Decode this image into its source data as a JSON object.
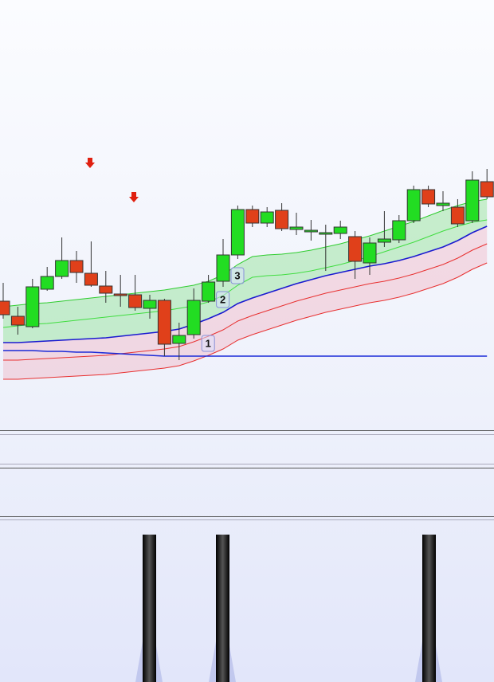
{
  "chart_data": {
    "type": "candlestick",
    "ylim": [
      0,
      54
    ],
    "up_color": "#22dd22",
    "down_color": "#e0401a",
    "open": [
      16.2,
      14.3,
      13.0,
      17.7,
      19.3,
      21.3,
      19.7,
      18.1,
      17.1,
      17.0,
      15.3,
      16.3,
      10.9,
      12.0,
      16.2,
      18.7,
      22.0,
      27.7,
      26.0,
      27.6,
      25.2,
      24.9,
      24.6,
      24.7,
      24.3,
      21.0,
      23.6,
      23.9,
      26.3,
      30.2,
      28.2,
      28.0,
      26.3,
      31.2
    ],
    "high": [
      18.5,
      15.5,
      19.0,
      20.5,
      24.2,
      22.5,
      23.7,
      20.0,
      19.5,
      19.5,
      17.0,
      16.5,
      13.5,
      17.8,
      19.5,
      24.0,
      28.2,
      28.2,
      28.0,
      28.5,
      27.3,
      26.4,
      25.8,
      26.3,
      25.0,
      24.2,
      27.5,
      27.0,
      30.7,
      30.7,
      30.0,
      29.0,
      32.5,
      32.8
    ],
    "low": [
      14.0,
      12.0,
      12.8,
      17.5,
      19.0,
      18.5,
      18.0,
      16.0,
      15.5,
      15.0,
      14.0,
      9.3,
      8.8,
      11.5,
      16.0,
      18.0,
      21.5,
      25.5,
      25.5,
      25.0,
      24.5,
      23.8,
      20.0,
      24.0,
      19.0,
      19.5,
      23.0,
      23.5,
      26.0,
      28.0,
      27.5,
      25.5,
      26.0,
      29.0
    ],
    "close": [
      14.5,
      13.2,
      18.0,
      19.3,
      21.3,
      19.8,
      18.2,
      17.2,
      16.9,
      15.4,
      16.3,
      10.8,
      11.9,
      16.3,
      18.6,
      22.0,
      27.7,
      26.0,
      27.4,
      25.3,
      25.5,
      25.1,
      24.8,
      25.5,
      21.2,
      23.5,
      24.0,
      26.3,
      30.2,
      28.4,
      28.5,
      25.9,
      31.4,
      29.3
    ],
    "bands": [
      {
        "color": "#2ecc2e",
        "values": [
          15.5,
          15.7,
          15.9,
          16.0,
          16.2,
          16.4,
          16.6,
          16.8,
          17.0,
          17.2,
          17.4,
          17.6,
          17.9,
          18.2,
          18.7,
          19.5,
          20.8,
          21.8,
          22.0,
          22.1,
          22.3,
          22.6,
          23.0,
          23.4,
          23.9,
          24.4,
          25.0,
          25.6,
          26.2,
          26.9,
          27.6,
          28.2,
          28.7,
          29.0
        ]
      },
      {
        "color": "#40dd40",
        "values": [
          12.9,
          13.1,
          13.3,
          13.4,
          13.6,
          13.8,
          14.0,
          14.2,
          14.4,
          14.6,
          14.8,
          15.0,
          15.3,
          15.6,
          16.1,
          16.9,
          18.2,
          19.2,
          19.4,
          19.5,
          19.7,
          20.0,
          20.4,
          20.8,
          21.3,
          21.8,
          22.4,
          23.0,
          23.6,
          24.3,
          25.0,
          25.6,
          26.1,
          26.4
        ]
      },
      {
        "color": "#1a1ad0",
        "values": [
          11.0,
          11.0,
          11.1,
          11.2,
          11.3,
          11.4,
          11.5,
          11.6,
          11.8,
          12.0,
          12.2,
          12.4,
          12.7,
          13.3,
          14.0,
          14.8,
          15.9,
          16.6,
          17.2,
          17.8,
          18.4,
          18.9,
          19.4,
          19.8,
          20.2,
          20.6,
          20.9,
          21.3,
          21.8,
          22.4,
          23.0,
          23.8,
          24.8,
          25.6
        ]
      },
      {
        "color": "#e83030",
        "values": [
          8.8,
          8.8,
          8.9,
          9.0,
          9.1,
          9.2,
          9.3,
          9.4,
          9.6,
          9.8,
          10.0,
          10.2,
          10.5,
          11.1,
          11.8,
          12.6,
          13.7,
          14.4,
          15.0,
          15.6,
          16.2,
          16.7,
          17.2,
          17.6,
          18.0,
          18.4,
          18.7,
          19.1,
          19.6,
          20.2,
          20.8,
          21.6,
          22.6,
          23.4
        ]
      },
      {
        "color": "#e83030",
        "values": [
          6.4,
          6.4,
          6.5,
          6.6,
          6.7,
          6.8,
          6.9,
          7.0,
          7.2,
          7.4,
          7.6,
          7.8,
          8.1,
          8.7,
          9.4,
          10.2,
          11.3,
          12.0,
          12.6,
          13.2,
          13.8,
          14.3,
          14.8,
          15.2,
          15.6,
          16.0,
          16.3,
          16.7,
          17.2,
          17.8,
          18.4,
          19.2,
          20.2,
          21.0
        ]
      },
      {
        "color": "#1a2ad8",
        "values": [
          10.0,
          10.0,
          10.0,
          9.9,
          9.9,
          9.8,
          9.8,
          9.7,
          9.6,
          9.5,
          9.4,
          9.3,
          9.3,
          9.3,
          9.3,
          9.3,
          9.3,
          9.3,
          9.3,
          9.3,
          9.3,
          9.3,
          9.3,
          9.3,
          9.3,
          9.3,
          9.3,
          9.3,
          9.3,
          9.3,
          9.3,
          9.3,
          9.3,
          9.3
        ]
      }
    ],
    "annotations": [
      "1",
      "2",
      "3"
    ]
  }
}
